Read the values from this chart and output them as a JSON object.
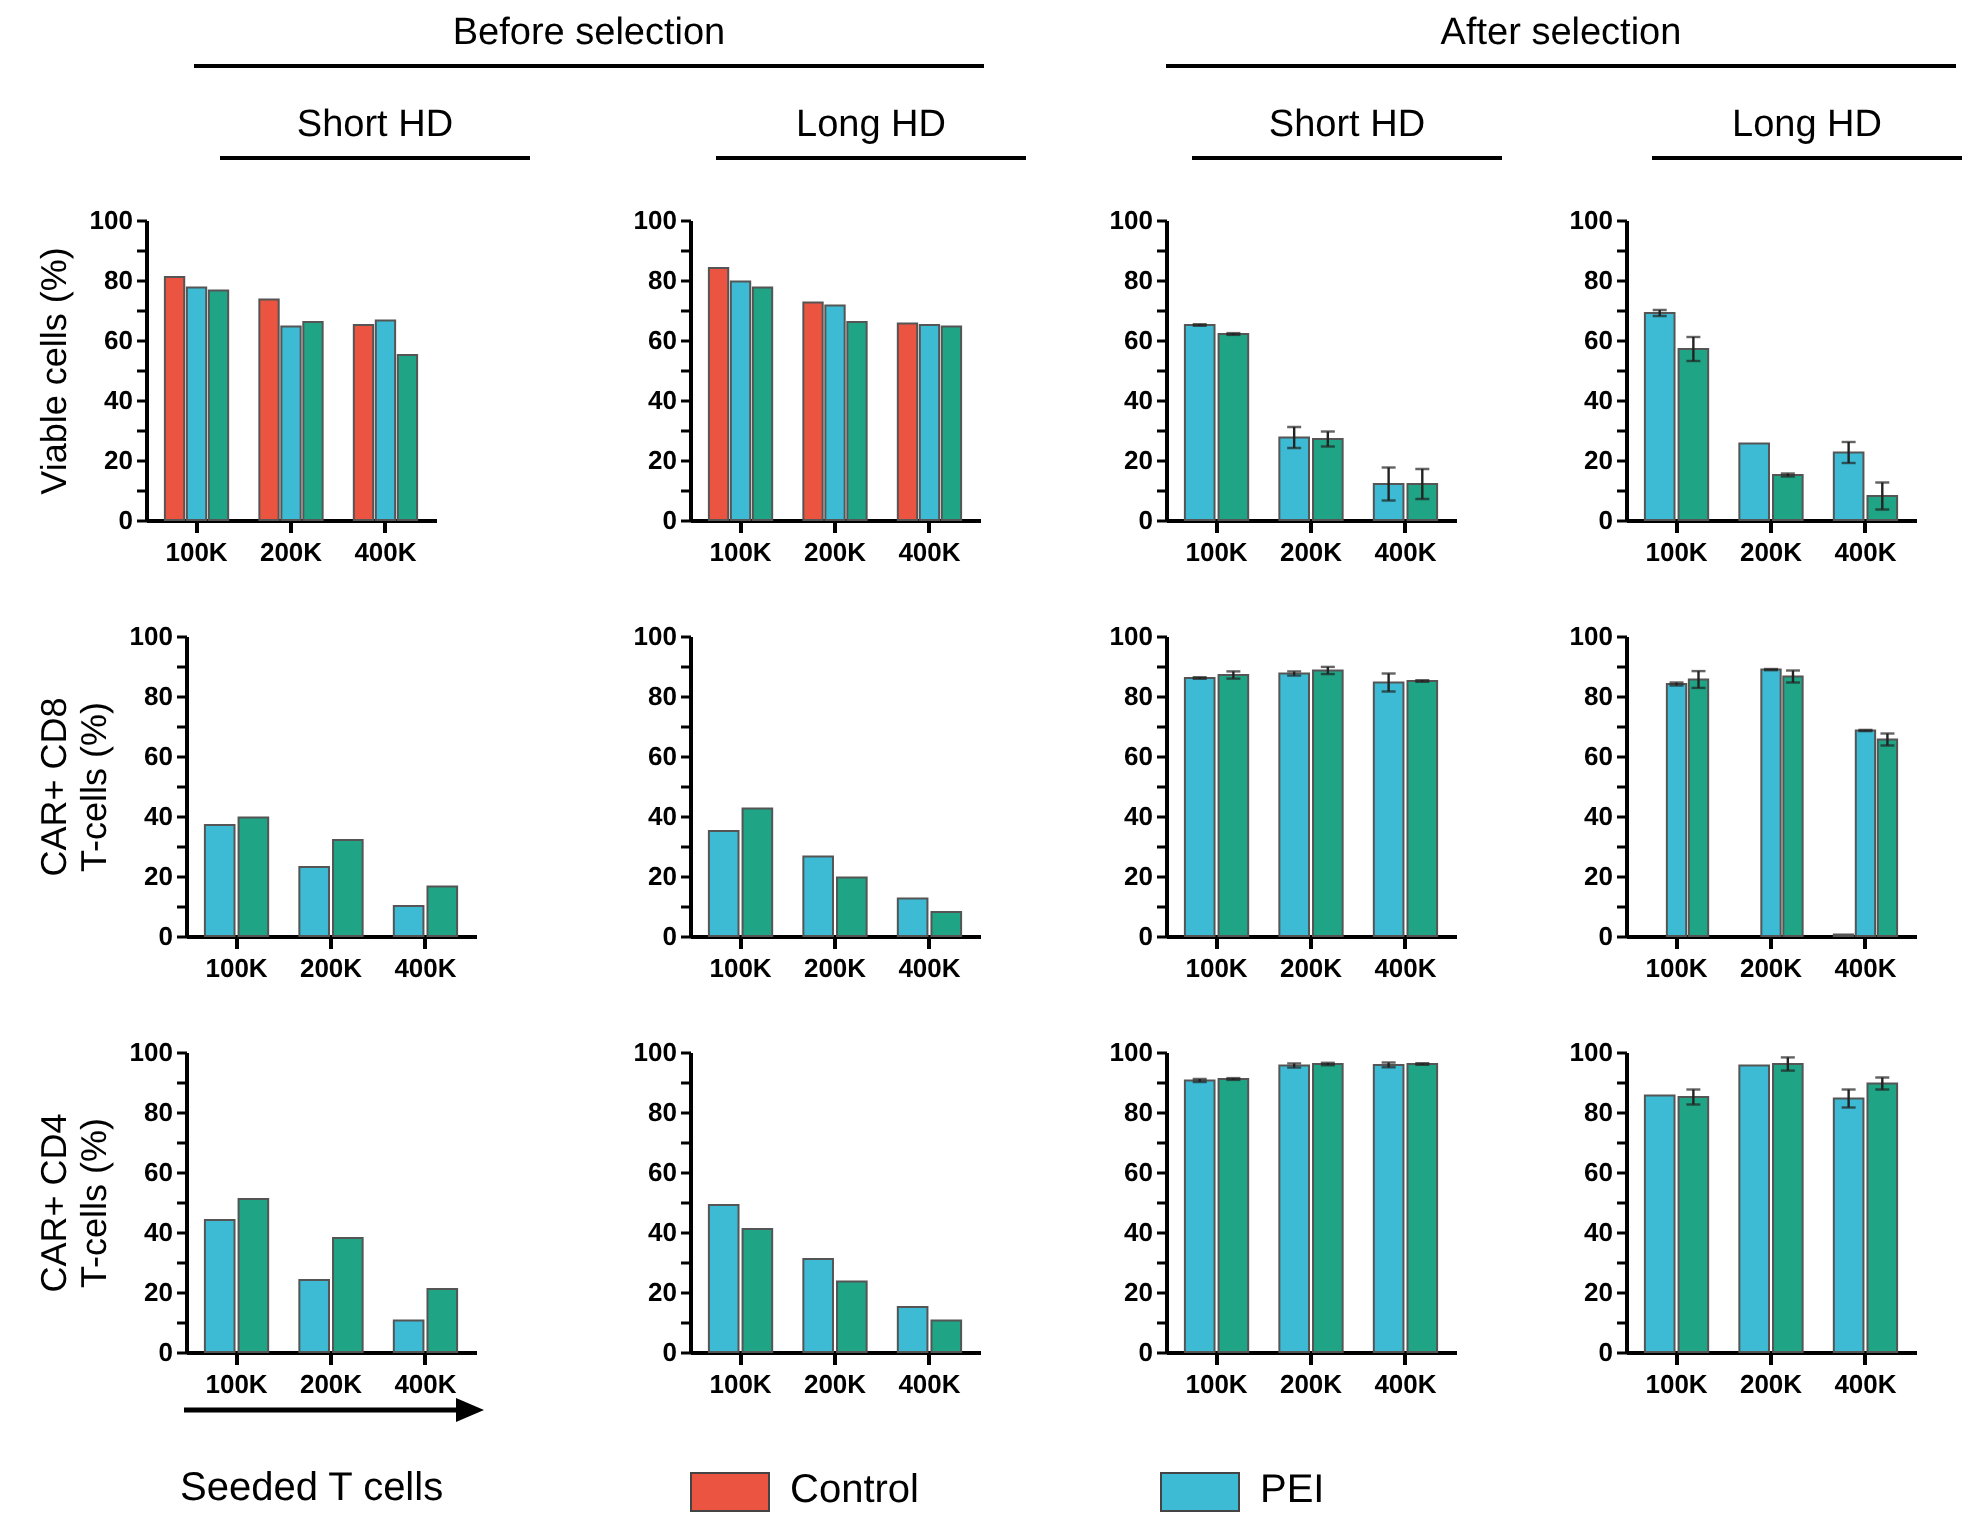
{
  "chart_data": [
    {
      "type": "bar",
      "title": "Short HD",
      "annotations": [
        "Before selection"
      ],
      "ylabel": "Viable cells (%)",
      "categories": [
        "100K",
        "200K",
        "400K"
      ],
      "legend": "bottom",
      "ylim": [
        0,
        100
      ],
      "yticks": [
        0,
        {
          "value": 10,
          "label": null
        },
        20,
        {
          "value": 30,
          "label": null
        },
        40,
        {
          "value": 50,
          "label": null
        },
        60,
        {
          "value": 70,
          "label": null
        },
        80,
        {
          "value": 90,
          "label": null
        },
        100
      ],
      "series": [
        {
          "name": "Control",
          "color": "#ea5440",
          "values": [
            81,
            73.5,
            65
          ]
        },
        {
          "name": "PEI",
          "color": "#3dbbd5",
          "values": [
            77.5,
            64.5,
            66.5
          ]
        },
        {
          "color": "#1fa586",
          "values": [
            76.5,
            66,
            55
          ]
        }
      ]
    },
    {
      "type": "bar",
      "title": "Long HD",
      "categories": [
        "100K",
        "200K",
        "400K"
      ],
      "ylim": [
        0,
        100
      ],
      "yticks": [
        0,
        {
          "value": 10,
          "label": null
        },
        20,
        {
          "value": 30,
          "label": null
        },
        40,
        {
          "value": 50,
          "label": null
        },
        60,
        {
          "value": 70,
          "label": null
        },
        80,
        {
          "value": 90,
          "label": null
        },
        100
      ],
      "series": [
        {
          "color": "#ea5440",
          "values": [
            84,
            72.5,
            65.5
          ]
        },
        {
          "color": "#3dbbd5",
          "values": [
            79.5,
            71.5,
            65
          ]
        },
        {
          "color": "#1fa586",
          "values": [
            77.5,
            66,
            64.5
          ]
        }
      ]
    },
    {
      "type": "bar",
      "title": "Short HD",
      "annotations": [
        "After selection"
      ],
      "categories": [
        "100K",
        "200K",
        "400K"
      ],
      "ylim": [
        0,
        100
      ],
      "yticks": [
        0,
        {
          "value": 10,
          "label": null
        },
        20,
        {
          "value": 30,
          "label": null
        },
        40,
        {
          "value": 50,
          "label": null
        },
        60,
        {
          "value": 70,
          "label": null
        },
        80,
        {
          "value": 90,
          "label": null
        },
        100
      ],
      "series": [
        {
          "color": "#3dbbd5",
          "values": [
            65,
            27.5,
            12
          ],
          "errors": [
            0.3,
            3.5,
            5.5
          ]
        },
        {
          "color": "#1fa586",
          "values": [
            62,
            27,
            12
          ],
          "errors": [
            0.3,
            2.5,
            5
          ]
        }
      ]
    },
    {
      "type": "bar",
      "title": "Long HD",
      "categories": [
        "100K",
        "200K",
        "400K"
      ],
      "ylim": [
        0,
        100
      ],
      "yticks": [
        0,
        {
          "value": 10,
          "label": null
        },
        20,
        {
          "value": 30,
          "label": null
        },
        40,
        {
          "value": 50,
          "label": null
        },
        60,
        {
          "value": 70,
          "label": null
        },
        80,
        {
          "value": 90,
          "label": null
        },
        100
      ],
      "series": [
        {
          "color": "#3dbbd5",
          "values": [
            69,
            25.5,
            22.5
          ],
          "errors": [
            1,
            null,
            3.5
          ]
        },
        {
          "color": "#1fa586",
          "values": [
            57,
            15,
            8
          ],
          "errors": [
            4,
            0.5,
            4.5
          ]
        }
      ]
    },
    {
      "type": "bar",
      "ylabel": "CAR+ CD8 T-cells (%)",
      "categories": [
        "100K",
        "200K",
        "400K"
      ],
      "ylim": [
        0,
        100
      ],
      "yticks": [
        0,
        {
          "value": 10,
          "label": null
        },
        20,
        {
          "value": 30,
          "label": null
        },
        40,
        {
          "value": 50,
          "label": null
        },
        60,
        {
          "value": 70,
          "label": null
        },
        80,
        {
          "value": 90,
          "label": null
        },
        100
      ],
      "series": [
        {
          "color": "#3dbbd5",
          "values": [
            37,
            23,
            10
          ]
        },
        {
          "color": "#1fa586",
          "values": [
            39.5,
            32,
            16.5
          ]
        }
      ]
    },
    {
      "type": "bar",
      "categories": [
        "100K",
        "200K",
        "400K"
      ],
      "ylim": [
        0,
        100
      ],
      "yticks": [
        0,
        {
          "value": 10,
          "label": null
        },
        20,
        {
          "value": 30,
          "label": null
        },
        40,
        {
          "value": 50,
          "label": null
        },
        60,
        {
          "value": 70,
          "label": null
        },
        80,
        {
          "value": 90,
          "label": null
        },
        100
      ],
      "series": [
        {
          "color": "#3dbbd5",
          "values": [
            35,
            26.5,
            12.5
          ]
        },
        {
          "color": "#1fa586",
          "values": [
            42.5,
            19.5,
            8
          ]
        }
      ]
    },
    {
      "type": "bar",
      "categories": [
        "100K",
        "200K",
        "400K"
      ],
      "ylim": [
        0,
        100
      ],
      "yticks": [
        0,
        {
          "value": 10,
          "label": null
        },
        20,
        {
          "value": 30,
          "label": null
        },
        40,
        {
          "value": 50,
          "label": null
        },
        60,
        {
          "value": 70,
          "label": null
        },
        80,
        {
          "value": 90,
          "label": null
        },
        100
      ],
      "series": [
        {
          "color": "#3dbbd5",
          "values": [
            86,
            87.5,
            84.5
          ],
          "errors": [
            0.3,
            0.7,
            3
          ]
        },
        {
          "color": "#1fa586",
          "values": [
            87,
            88.5,
            85
          ],
          "errors": [
            1.2,
            1.2,
            0.3
          ]
        }
      ]
    },
    {
      "type": "bar",
      "categories": [
        "100K",
        "200K",
        "400K"
      ],
      "ylim": [
        0,
        100
      ],
      "yticks": [
        0,
        {
          "value": 10,
          "label": null
        },
        20,
        {
          "value": 30,
          "label": null
        },
        40,
        {
          "value": 50,
          "label": null
        },
        60,
        {
          "value": 70,
          "label": null
        },
        80,
        {
          "value": 90,
          "label": null
        },
        100
      ],
      "series": [
        {
          "color": "#ea5440",
          "values": [
            null,
            null,
            0.5
          ]
        },
        {
          "color": "#3dbbd5",
          "values": [
            84,
            88.8,
            68.5
          ],
          "errors": [
            0.5,
            0.2,
            0.2
          ]
        },
        {
          "color": "#1fa586",
          "values": [
            85.5,
            86.5,
            65.5
          ],
          "errors": [
            2.8,
            2,
            2
          ]
        }
      ]
    },
    {
      "type": "bar",
      "ylabel": "CAR+ CD4 T-cells (%)",
      "annotations": [
        "Seeded T cells"
      ],
      "categories": [
        "100K",
        "200K",
        "400K"
      ],
      "ylim": [
        0,
        100
      ],
      "yticks": [
        0,
        {
          "value": 10,
          "label": null
        },
        20,
        {
          "value": 30,
          "label": null
        },
        40,
        {
          "value": 50,
          "label": null
        },
        60,
        {
          "value": 70,
          "label": null
        },
        80,
        {
          "value": 90,
          "label": null
        },
        100
      ],
      "series": [
        {
          "color": "#3dbbd5",
          "values": [
            44,
            24,
            10.5
          ]
        },
        {
          "color": "#1fa586",
          "values": [
            51,
            38,
            21
          ]
        }
      ]
    },
    {
      "type": "bar",
      "categories": [
        "100K",
        "200K",
        "400K"
      ],
      "ylim": [
        0,
        100
      ],
      "yticks": [
        0,
        {
          "value": 10,
          "label": null
        },
        20,
        {
          "value": 30,
          "label": null
        },
        40,
        {
          "value": 50,
          "label": null
        },
        60,
        {
          "value": 70,
          "label": null
        },
        80,
        {
          "value": 90,
          "label": null
        },
        100
      ],
      "series": [
        {
          "color": "#3dbbd5",
          "values": [
            49,
            31,
            15
          ]
        },
        {
          "color": "#1fa586",
          "values": [
            41,
            23.5,
            10.5
          ]
        }
      ]
    },
    {
      "type": "bar",
      "categories": [
        "100K",
        "200K",
        "400K"
      ],
      "ylim": [
        0,
        100
      ],
      "yticks": [
        0,
        {
          "value": 10,
          "label": null
        },
        20,
        {
          "value": 30,
          "label": null
        },
        40,
        {
          "value": 50,
          "label": null
        },
        60,
        {
          "value": 70,
          "label": null
        },
        80,
        {
          "value": 90,
          "label": null
        },
        100
      ],
      "series": [
        {
          "color": "#3dbbd5",
          "values": [
            90.5,
            95.5,
            95.7
          ],
          "errors": [
            0.5,
            0.7,
            0.8
          ]
        },
        {
          "color": "#1fa586",
          "values": [
            91,
            96,
            96
          ],
          "errors": [
            0.3,
            0.4,
            0.3
          ]
        }
      ]
    },
    {
      "type": "bar",
      "categories": [
        "100K",
        "200K",
        "400K"
      ],
      "ylim": [
        0,
        100
      ],
      "yticks": [
        0,
        {
          "value": 10,
          "label": null
        },
        20,
        {
          "value": 30,
          "label": null
        },
        40,
        {
          "value": 50,
          "label": null
        },
        60,
        {
          "value": 70,
          "label": null
        },
        80,
        {
          "value": 90,
          "label": null
        },
        100
      ],
      "series": [
        {
          "color": "#3dbbd5",
          "values": [
            85.5,
            95.5,
            84.5
          ],
          "errors": [
            null,
            null,
            3
          ]
        },
        {
          "color": "#1fa586",
          "values": [
            85,
            96,
            89.5
          ],
          "errors": [
            2.5,
            2.2,
            2
          ]
        }
      ]
    }
  ]
}
